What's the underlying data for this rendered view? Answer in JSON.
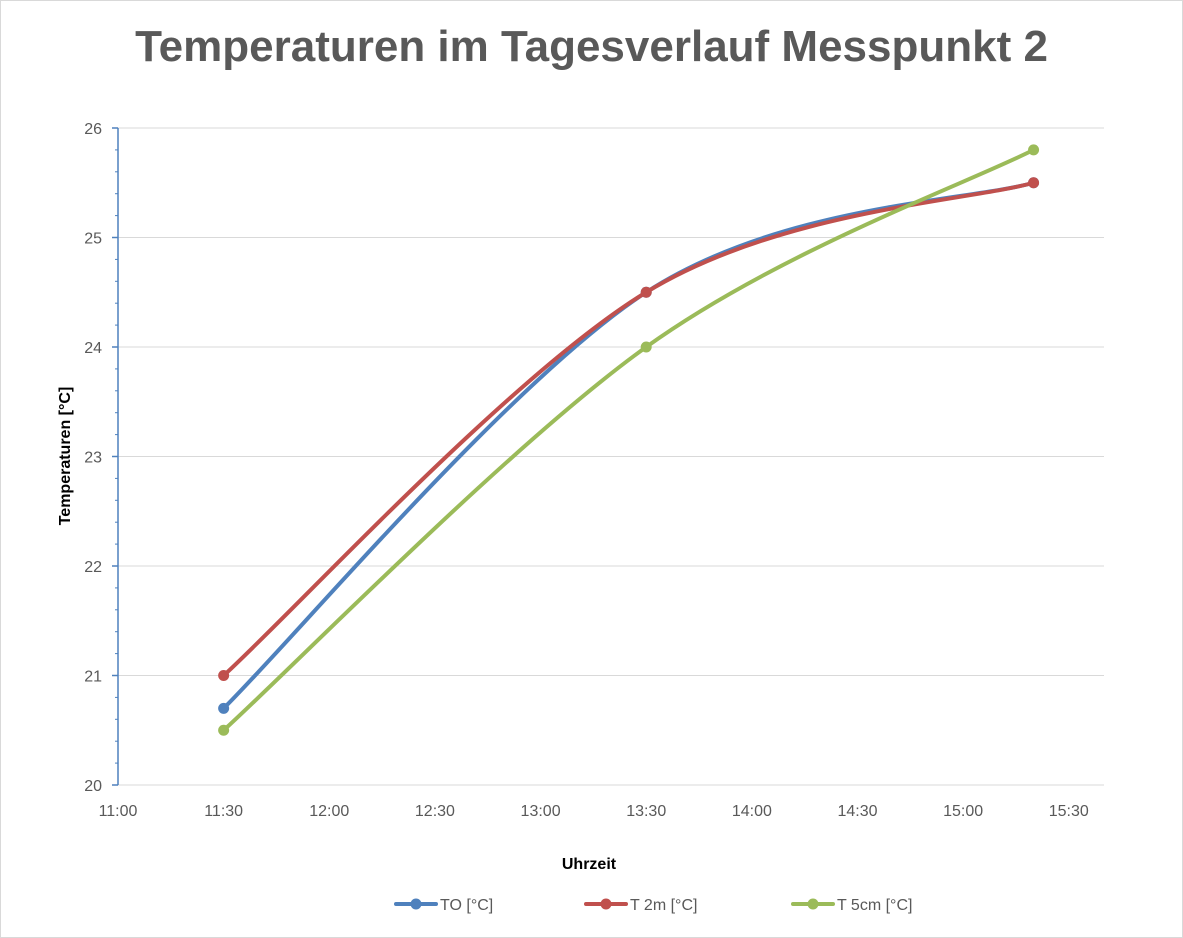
{
  "chart_data": {
    "type": "line",
    "title": "Temperaturen im Tagesverlauf Messpunkt 2",
    "xlabel": "Uhrzeit",
    "ylabel": "Temperaturen [°C]",
    "x_ticks": [
      "11:00",
      "11:30",
      "12:00",
      "12:30",
      "13:00",
      "13:30",
      "14:00",
      "14:30",
      "15:00",
      "15:30"
    ],
    "y_ticks": [
      "20",
      "21",
      "22",
      "23",
      "24",
      "25",
      "26"
    ],
    "xlim": [
      "11:00",
      "15:40"
    ],
    "ylim": [
      20,
      26
    ],
    "grid": true,
    "smoothed": true,
    "legend_position": "bottom",
    "x": [
      "11:30",
      "13:30",
      "15:20"
    ],
    "series": [
      {
        "name": "TO [°C]",
        "color": "#4f81bd",
        "values": [
          20.7,
          24.5,
          25.5
        ]
      },
      {
        "name": "T 2m [°C]",
        "color": "#c0504d",
        "values": [
          21.0,
          24.5,
          25.5
        ]
      },
      {
        "name": "T 5cm [°C]",
        "color": "#9bbb59",
        "values": [
          20.5,
          24.0,
          25.8
        ]
      }
    ]
  }
}
